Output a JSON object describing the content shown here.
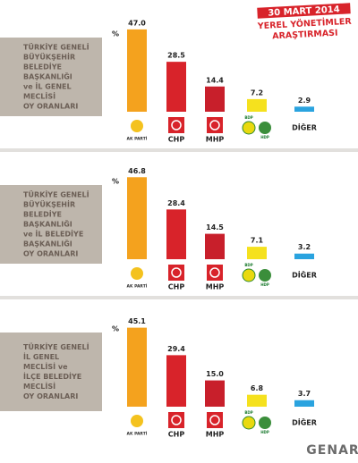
{
  "header": {
    "lines": [
      "30 MART 2014",
      "YEREL YÖNETİMLER",
      "ARAŞTIRMASI"
    ]
  },
  "footer": {
    "brand": "GENAR"
  },
  "chart_data": [
    {
      "type": "bar",
      "title_lines": [
        "TÜRKİYE GENELİ",
        "BÜYÜKŞEHİR",
        "BELEDİYE",
        "BAŞKANLIĞI",
        "ve İL GENEL",
        "MECLİSİ",
        "OY ORANLARI"
      ],
      "y_label": "%",
      "categories": [
        "AK PARTİ",
        "CHP",
        "MHP",
        "BDP",
        "DİĞER"
      ],
      "second_logo": "HDP",
      "values": [
        47.0,
        28.5,
        14.4,
        7.2,
        2.9
      ],
      "value_labels": [
        "47.0",
        "28.5",
        "14.4",
        "7.2",
        "2.9"
      ],
      "colors": [
        "#f4a21e",
        "#d8232a",
        "#c81f2b",
        "#f5e11e",
        "#2aa3df"
      ],
      "ylim": [
        0,
        50
      ]
    },
    {
      "type": "bar",
      "title_lines": [
        "TÜRKİYE GENELİ",
        "BÜYÜKŞEHİR",
        "BELEDİYE",
        "BAŞKANLIĞI",
        "ve İL BELEDİYE",
        "BAŞKANLIĞI",
        "OY ORANLARI"
      ],
      "y_label": "%",
      "categories": [
        "AK PARTİ",
        "CHP",
        "MHP",
        "BDP",
        "DİĞER"
      ],
      "second_logo": "HDP",
      "values": [
        46.8,
        28.4,
        14.5,
        7.1,
        3.2
      ],
      "value_labels": [
        "46.8",
        "28.4",
        "14.5",
        "7.1",
        "3.2"
      ],
      "colors": [
        "#f4a21e",
        "#d8232a",
        "#c81f2b",
        "#f5e11e",
        "#2aa3df"
      ],
      "ylim": [
        0,
        50
      ]
    },
    {
      "type": "bar",
      "title_lines": [
        "TÜRKİYE GENELİ",
        "İL GENEL",
        "MECLİSİ ve",
        "İLÇE BELEDİYE",
        "MECLİSİ",
        "OY ORANLARI"
      ],
      "y_label": "%",
      "categories": [
        "AK PARTİ",
        "CHP",
        "MHP",
        "BDP",
        "DİĞER"
      ],
      "second_logo": "HDP",
      "values": [
        45.1,
        29.4,
        15.0,
        6.8,
        3.7
      ],
      "value_labels": [
        "45.1",
        "29.4",
        "15.0",
        "6.8",
        "3.7"
      ],
      "colors": [
        "#f4a21e",
        "#d8232a",
        "#c81f2b",
        "#f5e11e",
        "#2aa3df"
      ],
      "ylim": [
        0,
        50
      ]
    }
  ]
}
